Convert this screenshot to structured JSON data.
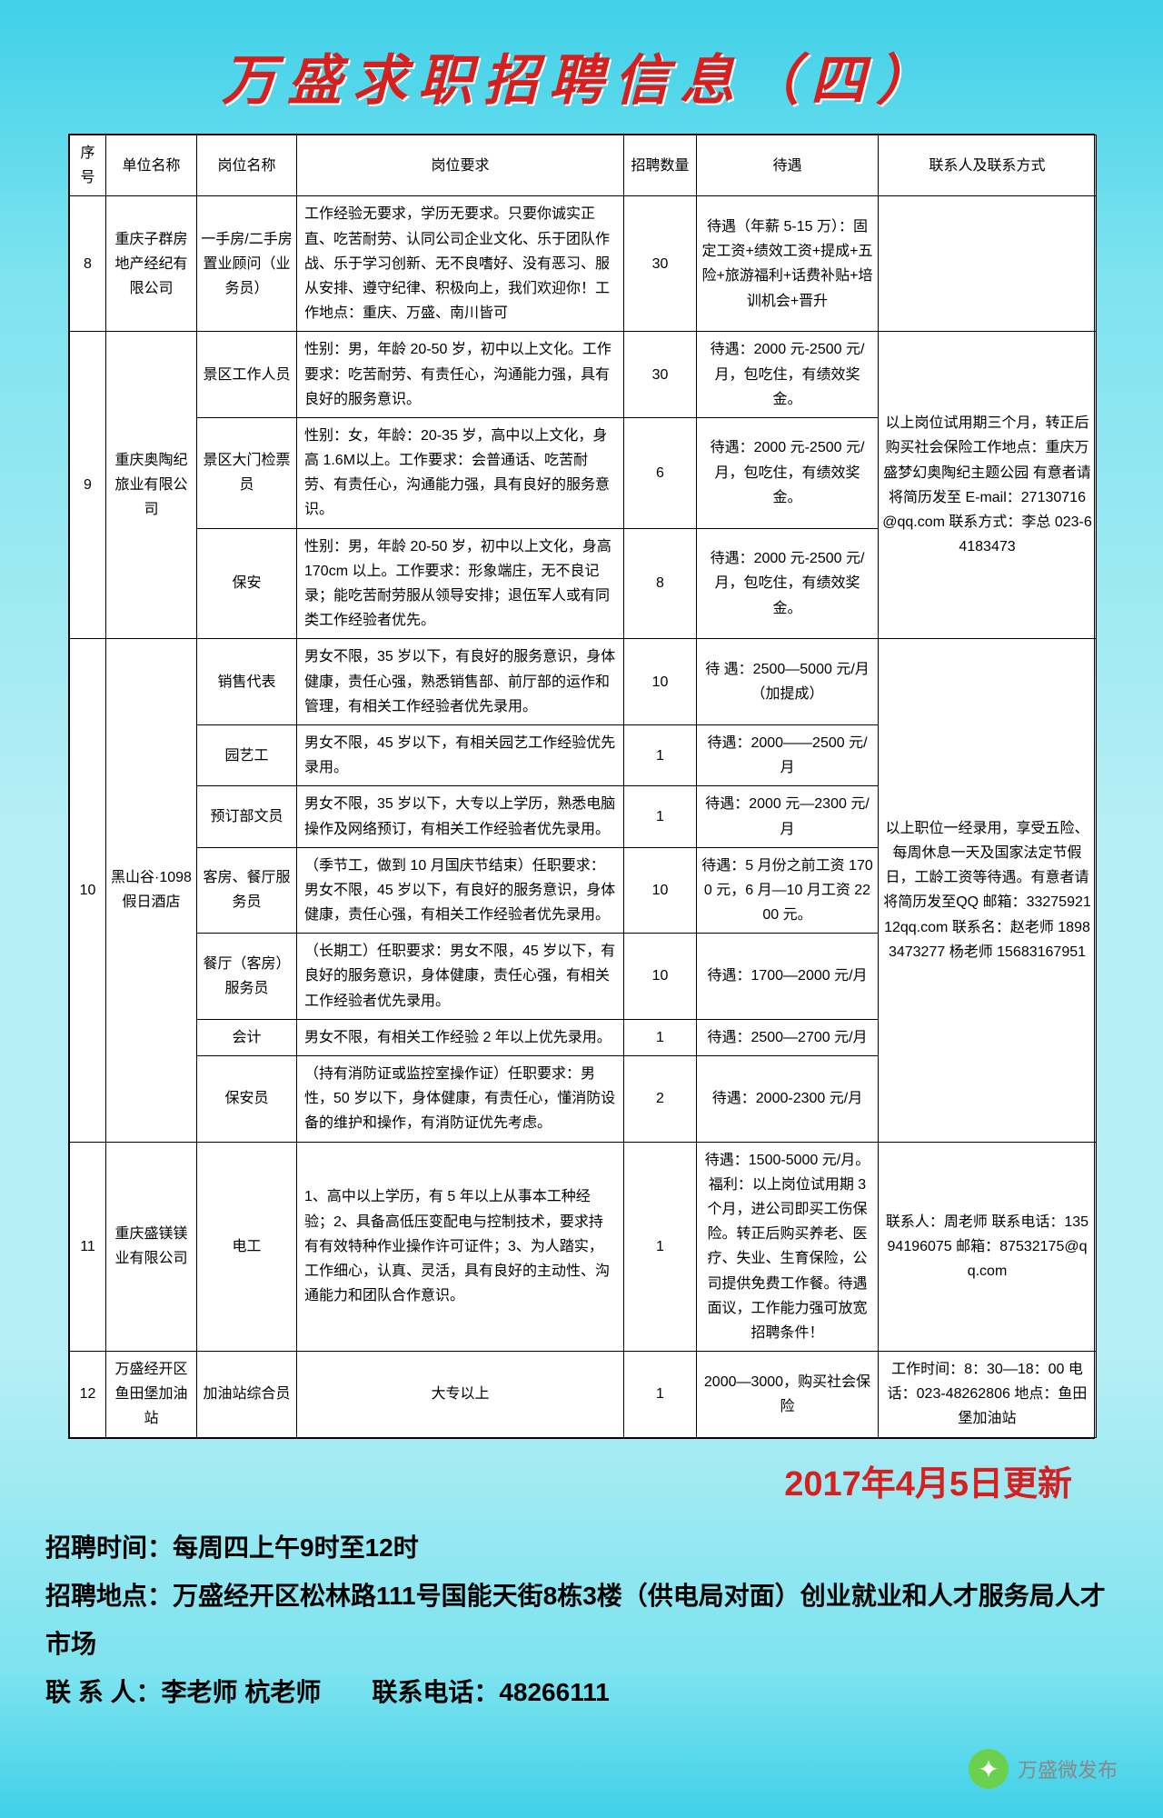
{
  "title": "万盛求职招聘信息（四）",
  "update_date": "2017年4月5日更新",
  "headers": {
    "seq": "序号",
    "unit": "单位名称",
    "pos": "岗位名称",
    "req": "岗位要求",
    "num": "招聘数量",
    "pay": "待遇",
    "contact": "联系人及联系方式"
  },
  "rows": [
    {
      "seq": "8",
      "unit": "重庆子群房地产经纪有限公司",
      "pos": "一手房/二手房 置业顾问（业务员）",
      "req": "工作经验无要求，学历无要求。只要你诚实正直、吃苦耐劳、认同公司企业文化、乐于团队作战、乐于学习创新、无不良嗜好、没有恶习、服从安排、遵守纪律、积极向上，我们欢迎你！工作地点：重庆、万盛、南川皆可",
      "num": "30",
      "pay": "待遇（年薪 5-15 万）：固定工资+绩效工资+提成+五险+旅游福利+话费补贴+培训机会+晋升",
      "contact": ""
    }
  ],
  "group9": {
    "seq": "9",
    "unit": "重庆奥陶纪旅业有限公司",
    "contact": "以上岗位试用期三个月，转正后购买社会保险工作地点：重庆万盛梦幻奥陶纪主题公园 有意者请将简历发至 E-mail：27130716@qq.com 联系方式：李总 023-64183473",
    "p1": {
      "pos": "景区工作人员",
      "req": "性别：男，年龄 20-50 岁，初中以上文化。工作要求：吃苦耐劳、有责任心，沟通能力强，具有良好的服务意识。",
      "num": "30",
      "pay": "待遇：2000 元-2500 元/月，包吃住，有绩效奖金。"
    },
    "p2": {
      "pos": "景区大门检票员",
      "req": "性别：女，年龄：20-35 岁，高中以上文化，身高 1.6M以上。工作要求：会普通话、吃苦耐劳、有责任心，沟通能力强，具有良好的服务意识。",
      "num": "6",
      "pay": "待遇：2000 元-2500 元/月，包吃住，有绩效奖金。"
    },
    "p3": {
      "pos": "保安",
      "req": "性别：男，年龄 20-50 岁，初中以上文化，身高 170cm 以上。工作要求：形象端庄，无不良记录；能吃苦耐劳服从领导安排；退伍军人或有同类工作经验者优先。",
      "num": "8",
      "pay": "待遇：2000 元-2500 元/月，包吃住，有绩效奖金。"
    }
  },
  "group10": {
    "seq": "10",
    "unit": "黑山谷·1098假日酒店",
    "contact": "以上职位一经录用，享受五险、每周休息一天及国家法定节假日，工龄工资等待遇。有意者请将简历发至QQ 邮箱：3327592112qq.com 联系名：赵老师 18983473277 杨老师 15683167951",
    "p1": {
      "pos": "销售代表",
      "req": "男女不限，35 岁以下，有良好的服务意识，身体健康，责任心强，熟悉销售部、前厅部的运作和管理，有相关工作经验者优先录用。",
      "num": "10",
      "pay": "待 遇：2500—5000 元/月（加提成）"
    },
    "p2": {
      "pos": "园艺工",
      "req": "男女不限，45 岁以下，有相关园艺工作经验优先录用。",
      "num": "1",
      "pay": "待遇：2000——2500 元/月"
    },
    "p3": {
      "pos": "预订部文员",
      "req": "男女不限，35 岁以下，大专以上学历，熟悉电脑操作及网络预订，有相关工作经验者优先录用。",
      "num": "1",
      "pay": "待遇：2000 元—2300 元/月"
    },
    "p4": {
      "pos": "客房、餐厅服务员",
      "req": "（季节工，做到 10 月国庆节结束）任职要求：男女不限，45 岁以下，有良好的服务意识，身体健康，责任心强，有相关工作经验者优先录用。",
      "num": "10",
      "pay": "待遇：5 月份之前工资 1700 元，6 月—10 月工资 2200 元。"
    },
    "p5": {
      "pos": "餐厅（客房）服务员",
      "req": "（长期工）任职要求：男女不限，45 岁以下，有良好的服务意识，身体健康，责任心强，有相关工作经验者优先录用。",
      "num": "10",
      "pay": "待遇：1700—2000 元/月"
    },
    "p6": {
      "pos": "会计",
      "req": "男女不限，有相关工作经验 2 年以上优先录用。",
      "num": "1",
      "pay": "待遇：2500—2700 元/月"
    },
    "p7": {
      "pos": "保安员",
      "req": "（持有消防证或监控室操作证）任职要求：男性，50 岁以下，身体健康，有责任心，懂消防设备的维护和操作，有消防证优先考虑。",
      "num": "2",
      "pay": "待遇：2000-2300 元/月"
    }
  },
  "row11": {
    "seq": "11",
    "unit": "重庆盛镁镁业有限公司",
    "pos": "电工",
    "req": "1、高中以上学历，有 5 年以上从事本工种经验；2、具备高低压变配电与控制技术，要求持有有效特种作业操作许可证件；3、为人踏实，工作细心，认真、灵活，具有良好的主动性、沟通能力和团队合作意识。",
    "num": "1",
    "pay": "待遇：1500-5000 元/月。福利：以上岗位试用期 3 个月，进公司即买工伤保险。转正后购买养老、医疗、失业、生育保险，公司提供免费工作餐。待遇面议，工作能力强可放宽招聘条件！",
    "contact": "联系人：周老师 联系电话：13594196075 邮箱：87532175@qq.com"
  },
  "row12": {
    "seq": "12",
    "unit": "万盛经开区鱼田堡加油站",
    "pos": "加油站综合员",
    "req": "大专以上",
    "num": "1",
    "pay": "2000—3000，购买社会保险",
    "contact": "工作时间：8：30—18：00 电话：023-48262806 地点：鱼田堡加油站"
  },
  "footer": {
    "l1": "招聘时间：每周四上午9时至12时",
    "l2": "招聘地点：万盛经开区松林路111号国能天街8栋3楼（供电局对面）创业就业和人才服务局人才市场",
    "l3": "联 系 人：李老师 杭老师  联系电话：48266111"
  },
  "watermark": "万盛微发布"
}
